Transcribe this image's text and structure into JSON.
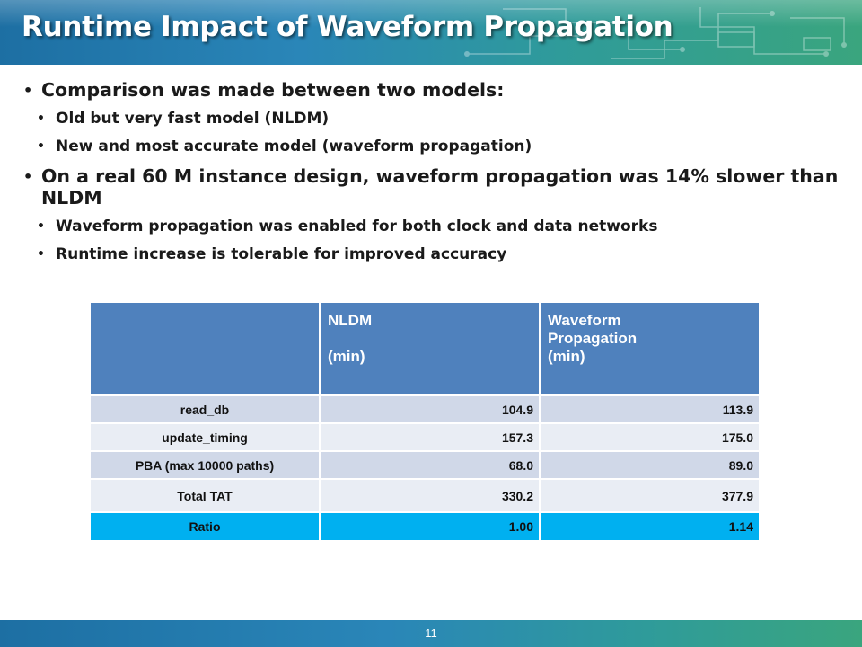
{
  "slide": {
    "title": "Runtime Impact of Waveform Propagation",
    "page_number": "11"
  },
  "bullets": {
    "b1": "Comparison was made between two models:",
    "b1_1": "Old but very fast model (NLDM)",
    "b1_2": "New and most accurate model (waveform propagation)",
    "b2": "On a real 60 M instance design, waveform propagation was 14% slower than NLDM",
    "b2_1": "Waveform propagation was enabled for both clock and data networks",
    "b2_2": "Runtime increase is tolerable for improved accuracy"
  },
  "table": {
    "header": {
      "nldm_line1": "NLDM",
      "nldm_line2": "(min)",
      "wave_line1": "Waveform",
      "wave_line2": "Propagation",
      "wave_line3": "(min)"
    },
    "rows": [
      {
        "label": "read_db",
        "nldm": "104.9",
        "waveform": "113.9"
      },
      {
        "label": "update_timing",
        "nldm": "157.3",
        "waveform": "175.0"
      },
      {
        "label": "PBA (max 10000 paths)",
        "nldm": "68.0",
        "waveform": "89.0"
      },
      {
        "label": "Total TAT",
        "nldm": "330.2",
        "waveform": "377.9"
      },
      {
        "label": "Ratio",
        "nldm": "1.00",
        "waveform": "1.14"
      }
    ]
  },
  "colors": {
    "header_blue": "#4f81bd",
    "row_dark": "#d0d8e8",
    "row_light": "#e9edf4",
    "ratio_highlight": "#00b0f0",
    "banner_start": "#1d6fa3",
    "banner_end": "#3aa57e"
  }
}
